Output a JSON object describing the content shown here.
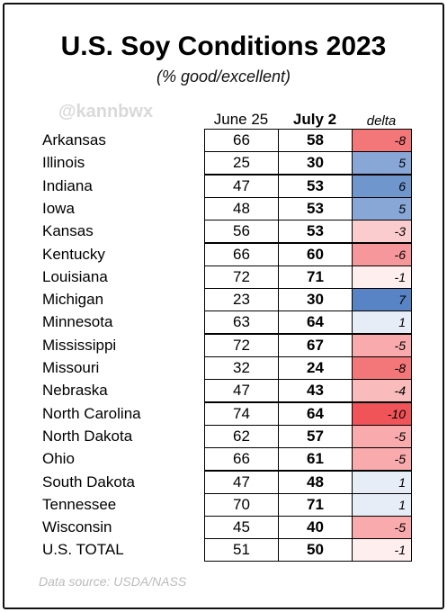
{
  "header": {
    "title": "U.S. Soy Conditions 2023",
    "subtitle": "(% good/excellent)",
    "watermark": "@kannbwx"
  },
  "table": {
    "columns": [
      "June 25",
      "July 2",
      "delta"
    ],
    "rows": [
      [
        "Arkansas",
        66,
        58,
        -8
      ],
      [
        "Illinois",
        25,
        30,
        5
      ],
      [
        "Indiana",
        47,
        53,
        6
      ],
      [
        "Iowa",
        48,
        53,
        5
      ],
      [
        "Kansas",
        56,
        53,
        -3
      ],
      [
        "Kentucky",
        66,
        60,
        -6
      ],
      [
        "Louisiana",
        72,
        71,
        -1
      ],
      [
        "Michigan",
        23,
        30,
        7
      ],
      [
        "Minnesota",
        63,
        64,
        1
      ],
      [
        "Mississippi",
        72,
        67,
        -5
      ],
      [
        "Missouri",
        32,
        24,
        -8
      ],
      [
        "Nebraska",
        47,
        43,
        -4
      ],
      [
        "North Carolina",
        74,
        64,
        -10
      ],
      [
        "North Dakota",
        62,
        57,
        -5
      ],
      [
        "Ohio",
        66,
        61,
        -5
      ],
      [
        "South Dakota",
        47,
        48,
        1
      ],
      [
        "Tennessee",
        70,
        71,
        1
      ],
      [
        "Wisconsin",
        45,
        40,
        -5
      ],
      [
        "U.S. TOTAL",
        51,
        50,
        -1
      ]
    ]
  },
  "footer": {
    "source": "Data source: USDA/NASS"
  }
}
